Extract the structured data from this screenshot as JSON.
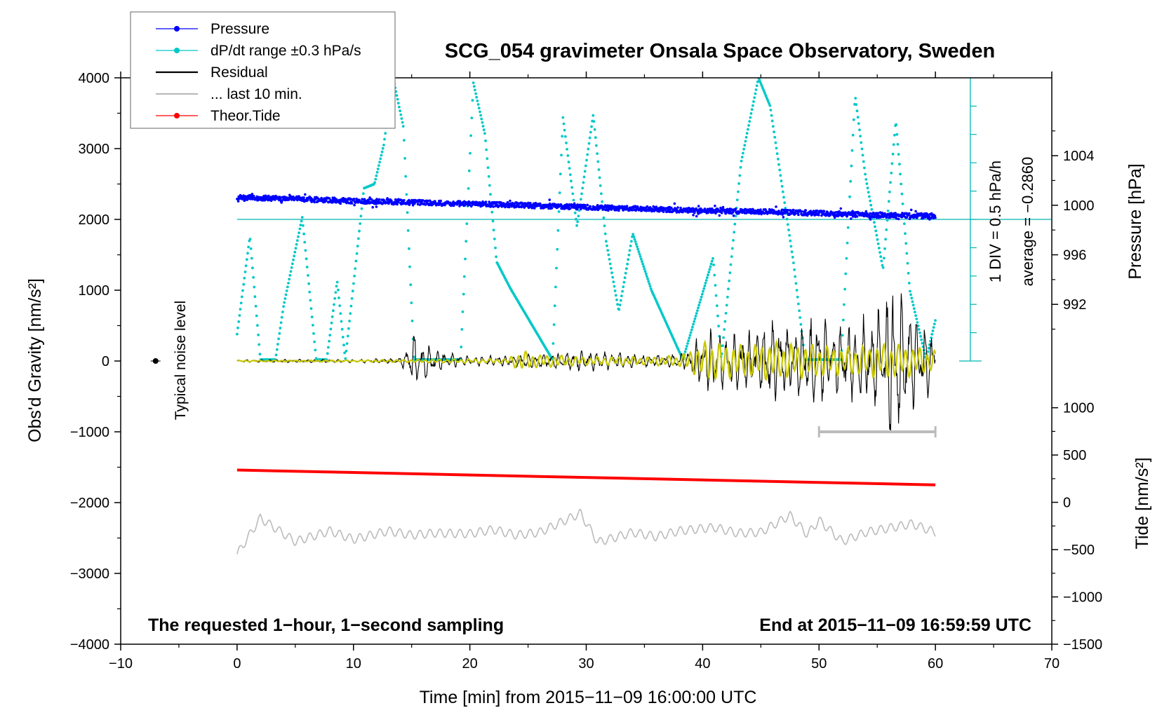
{
  "chart_data": {
    "type": "line",
    "title": "SCG_054 gravimeter Onsala Space Observatory, Sweden",
    "xlabel": "Time [min] from 2015−11−09 16:00:00 UTC",
    "ylabel_left": "Obs'd Gravity [nm/s²]",
    "ylabel_pressure": "Pressure [hPa]",
    "ylabel_tide": "Tide [nm/s²]",
    "xlim": [
      -10,
      70
    ],
    "ylim": [
      -4000,
      4000
    ],
    "x_ticks": [
      -10,
      0,
      10,
      20,
      30,
      40,
      50,
      60,
      70
    ],
    "x_tick_labels": [
      "−10",
      "0",
      "10",
      "20",
      "30",
      "40",
      "50",
      "60",
      "70"
    ],
    "y_ticks": [
      4000,
      3000,
      2000,
      1000,
      0,
      -1000,
      -2000,
      -3000,
      -4000
    ],
    "y_tick_labels": [
      "4000",
      "3000",
      "2000",
      "1000",
      "0",
      "−1000",
      "−2000",
      "−3000",
      "−4000"
    ],
    "pressure_ticks": [
      1004,
      1000,
      996,
      992
    ],
    "pressure_tick_labels": [
      "1004",
      "1000",
      "996",
      "992"
    ],
    "pressure_gravity_map": {
      "p1": 1000,
      "g1": 2200,
      "p2": 992,
      "g2": 800
    },
    "tide_ticks": [
      1000,
      500,
      0,
      -500,
      -1000,
      -1500
    ],
    "tide_tick_labels": [
      "1000",
      "500",
      "0",
      "−500",
      "−1000",
      "−1500"
    ],
    "tide_gravity_map": {
      "t1": 1000,
      "g1": -660,
      "t2": -1500,
      "g2": -4000
    },
    "legend": [
      {
        "label": "Pressure",
        "color": "#0000ff",
        "style": "line-dot"
      },
      {
        "label": "dP/dt range ±0.3 hPa/s",
        "color": "#00c8c8",
        "style": "line-dot"
      },
      {
        "label": "Residual",
        "color": "#000000",
        "style": "line"
      },
      {
        "label": "... last 10 min.",
        "color": "#bbbbbb",
        "style": "line"
      },
      {
        "label": "Theor.Tide",
        "color": "#ff0000",
        "style": "line-dot"
      }
    ],
    "annotations": {
      "div_label": "1 DIV = 0.5 hPa/h",
      "average_label": "average = −0.2860",
      "noise_label": "Typical noise level",
      "bottom_left": "The requested 1−hour, 1−second sampling",
      "bottom_right": "End at 2015−11−09 16:59:59 UTC"
    },
    "dpdt_axis": {
      "x": 63,
      "ymin": 0,
      "ymax": 4000,
      "baseline": 2000,
      "tick_step": 400
    },
    "last10_range": [
      50,
      60
    ],
    "last10_level": -1000,
    "noise_marker": {
      "x": -7,
      "y": 0
    },
    "series": [
      {
        "name": "Pressure",
        "color": "#0000ff",
        "x": [
          0,
          5,
          10,
          15,
          20,
          25,
          30,
          35,
          40,
          45,
          50,
          55,
          60
        ],
        "y": [
          2310,
          2290,
          2260,
          2240,
          2220,
          2200,
          2170,
          2150,
          2120,
          2110,
          2090,
          2060,
          2050
        ]
      },
      {
        "name": "dP/dt range ±0.3 hPa/s",
        "color": "#00c8c8",
        "x": [
          0,
          1.1,
          2.0,
          3.3,
          4.0,
          5.6,
          6.8,
          7.7,
          8.6,
          9.3,
          10.9,
          11.8,
          12.6,
          13.4,
          14.3,
          15.2,
          19.2,
          20.3,
          21.3,
          22.3,
          23.5,
          27.1,
          28.0,
          29.2,
          30.6,
          31.7,
          32.8,
          34.0,
          35.6,
          38.3,
          40.9,
          41.6,
          43.3,
          44.8,
          45.8,
          47.8,
          48.8,
          51.9,
          53.1,
          54.0,
          55.5,
          56.6,
          57.8,
          59.2,
          60.0
        ],
        "y": [
          380,
          1760,
          20,
          20,
          780,
          2030,
          20,
          20,
          1130,
          20,
          2440,
          2500,
          3050,
          4000,
          3300,
          20,
          20,
          3930,
          3200,
          1400,
          1020,
          20,
          3440,
          1900,
          3480,
          1700,
          700,
          1800,
          1000,
          20,
          1460,
          20,
          2800,
          4000,
          3600,
          1400,
          20,
          20,
          3750,
          2600,
          1300,
          3400,
          1000,
          20,
          580
        ]
      },
      {
        "name": "Residual",
        "color": "#000000",
        "x": [
          0,
          5,
          10,
          14,
          15.3,
          17,
          20,
          23,
          25,
          27,
          30,
          33,
          35,
          37,
          38.5,
          40.5,
          42,
          44,
          46,
          48,
          50,
          51,
          52.5,
          54,
          55.5,
          56.5,
          57.5,
          59,
          60
        ],
        "amp": [
          20,
          25,
          25,
          40,
          420,
          170,
          70,
          80,
          110,
          120,
          160,
          120,
          90,
          90,
          130,
          500,
          430,
          420,
          600,
          520,
          700,
          500,
          550,
          650,
          800,
          1350,
          900,
          700,
          300
        ]
      },
      {
        "name": "Residual (smoothed)",
        "color": "#c8c800",
        "x": [
          0,
          5,
          10,
          15,
          20,
          23,
          24.5,
          25.5,
          30,
          35,
          38,
          40.5,
          42,
          44,
          46,
          48,
          50,
          52,
          54,
          56,
          58,
          60
        ],
        "amp": [
          8,
          10,
          12,
          20,
          30,
          30,
          150,
          100,
          60,
          60,
          80,
          300,
          250,
          230,
          280,
          250,
          240,
          200,
          220,
          260,
          220,
          150
        ]
      },
      {
        "name": "... last 10 min.",
        "color": "#bbbbbb",
        "x": [
          0,
          2,
          5,
          8,
          10,
          13,
          15,
          17,
          20,
          22,
          24,
          26,
          29.5,
          31,
          34,
          36,
          38,
          41,
          43,
          45,
          47.5,
          49,
          50,
          52,
          54,
          56,
          58,
          60
        ],
        "y": [
          -2730,
          -2220,
          -2550,
          -2400,
          -2520,
          -2400,
          -2460,
          -2430,
          -2440,
          -2380,
          -2460,
          -2420,
          -2150,
          -2560,
          -2420,
          -2480,
          -2400,
          -2350,
          -2430,
          -2420,
          -2180,
          -2450,
          -2250,
          -2550,
          -2420,
          -2360,
          -2300,
          -2420
        ]
      },
      {
        "name": "Theor.Tide",
        "color": "#ff0000",
        "x": [
          0,
          60
        ],
        "y": [
          -1540,
          -1750
        ]
      }
    ]
  }
}
